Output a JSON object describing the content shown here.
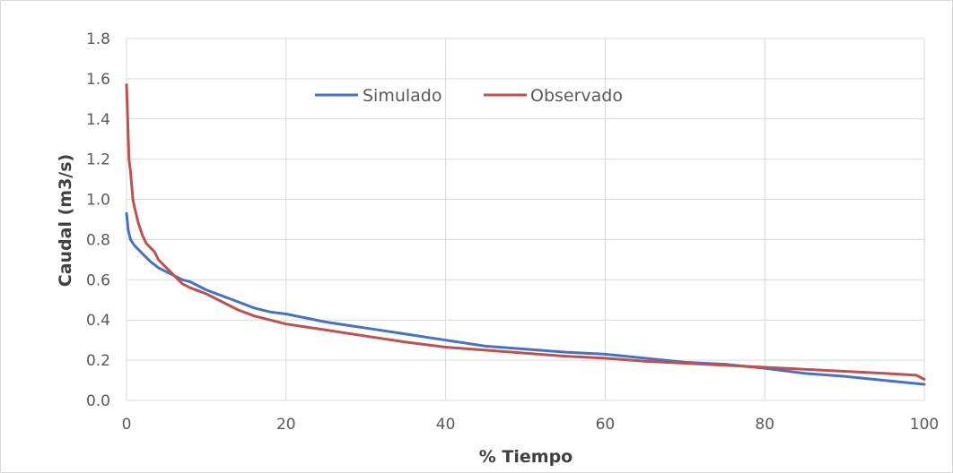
{
  "chart_data": {
    "type": "line",
    "title": "",
    "xlabel": "% Tiempo",
    "ylabel": "Caudal (m3/s)",
    "xlim": [
      0,
      100
    ],
    "ylim": [
      0,
      1.8
    ],
    "x_ticks": [
      0,
      20,
      40,
      60,
      80,
      100
    ],
    "y_ticks": [
      0.0,
      0.2,
      0.4,
      0.6,
      0.8,
      1.0,
      1.2,
      1.4,
      1.6,
      1.8
    ],
    "y_tick_labels": [
      "0.0",
      "0.2",
      "0.4",
      "0.6",
      "0.8",
      "1.0",
      "1.2",
      "1.4",
      "1.6",
      "1.8"
    ],
    "x_tick_labels": [
      "0",
      "20",
      "40",
      "60",
      "80",
      "100"
    ],
    "grid": true,
    "legend_position": "top-center",
    "series": [
      {
        "name": "Simulado",
        "color": "#4472c4",
        "x": [
          0,
          0.2,
          0.5,
          1,
          2,
          3,
          4,
          5,
          6,
          7,
          8,
          9,
          10,
          12,
          14,
          16,
          18,
          20,
          25,
          30,
          35,
          40,
          45,
          50,
          55,
          60,
          65,
          70,
          75,
          80,
          85,
          90,
          95,
          100
        ],
        "y": [
          0.93,
          0.85,
          0.8,
          0.77,
          0.73,
          0.69,
          0.66,
          0.64,
          0.62,
          0.6,
          0.59,
          0.57,
          0.55,
          0.52,
          0.49,
          0.46,
          0.44,
          0.43,
          0.39,
          0.36,
          0.33,
          0.3,
          0.27,
          0.255,
          0.24,
          0.23,
          0.21,
          0.19,
          0.18,
          0.16,
          0.135,
          0.12,
          0.1,
          0.08
        ]
      },
      {
        "name": "Observado",
        "color": "#c0504d",
        "x": [
          0,
          0.15,
          0.3,
          0.5,
          0.8,
          1,
          1.5,
          2,
          2.5,
          3,
          3.5,
          4,
          5,
          6,
          7,
          8,
          9,
          10,
          12,
          14,
          16,
          18,
          20,
          25,
          30,
          35,
          40,
          45,
          50,
          55,
          60,
          65,
          70,
          75,
          80,
          85,
          90,
          95,
          99,
          100
        ],
        "y": [
          1.57,
          1.4,
          1.2,
          1.14,
          1.0,
          0.96,
          0.88,
          0.82,
          0.78,
          0.76,
          0.74,
          0.7,
          0.66,
          0.62,
          0.58,
          0.56,
          0.545,
          0.53,
          0.49,
          0.45,
          0.42,
          0.4,
          0.38,
          0.35,
          0.32,
          0.29,
          0.265,
          0.25,
          0.235,
          0.22,
          0.21,
          0.195,
          0.185,
          0.175,
          0.165,
          0.155,
          0.145,
          0.135,
          0.125,
          0.105
        ]
      }
    ]
  }
}
